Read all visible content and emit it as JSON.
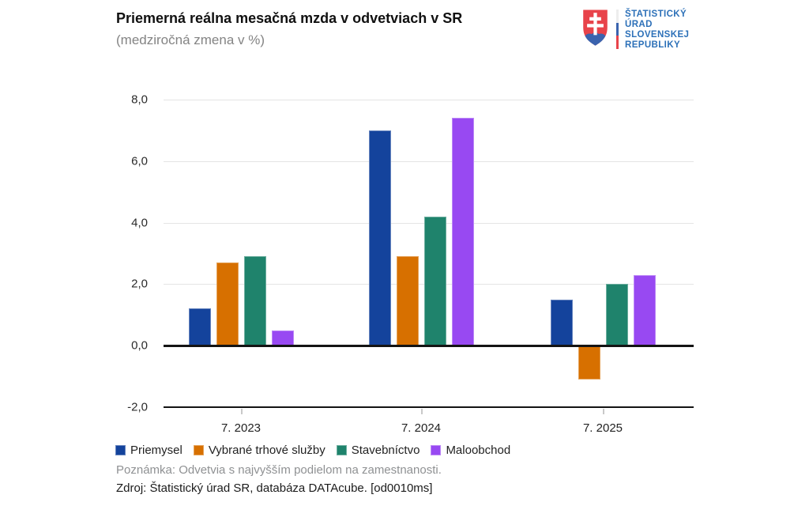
{
  "header": {
    "title": "Priemerná reálna mesačná mzda v odvetviach v SR",
    "subtitle": "(medziročná zmena v %)",
    "logo": {
      "lines": [
        "ŠTATISTICKÝ",
        "ÚRAD",
        "SLOVENSKEJ",
        "REPUBLIKY"
      ],
      "text_color": "#2C70B8",
      "shield_red": "#E8434A",
      "shield_blue": "#3A63AE",
      "divider_colors": [
        "#ededed",
        "#3A63AE",
        "#E8434A"
      ]
    }
  },
  "chart_data": {
    "type": "bar",
    "title": "Priemerná reálna mesačná mzda v odvetviach v SR",
    "subtitle": "(medziročná zmena v %)",
    "categories": [
      "7. 2023",
      "7. 2024",
      "7. 2025"
    ],
    "series": [
      {
        "name": "Priemysel",
        "color": "#14439C",
        "values": [
          1.2,
          7.0,
          1.5
        ]
      },
      {
        "name": "Vybrané trhové služby",
        "color": "#D77000",
        "values": [
          2.7,
          2.9,
          -1.1
        ]
      },
      {
        "name": "Stavebníctvo",
        "color": "#1F836C",
        "values": [
          2.9,
          4.2,
          2.0
        ]
      },
      {
        "name": "Maloobchod",
        "color": "#9849F2",
        "values": [
          0.5,
          7.4,
          2.3
        ]
      }
    ],
    "ylim": [
      -2.0,
      8.0
    ],
    "yticks": [
      {
        "value": 8,
        "label": "8,0"
      },
      {
        "value": 6,
        "label": "6,0"
      },
      {
        "value": 4,
        "label": "4,0"
      },
      {
        "value": 2,
        "label": "2,0"
      },
      {
        "value": 0,
        "label": "0,0"
      },
      {
        "value": -2,
        "label": "-2,0"
      }
    ],
    "grid": "horizontal-light",
    "zero_line": true,
    "legend_position": "bottom-left",
    "gridline_color": "#e4e4e4",
    "axis_line_color": "#141414"
  },
  "footer": {
    "note": "Poznámka: Odvetvia s najvyšším podielom na zamestnanosti.",
    "source": "Zdroj: Štatistický úrad SR, databáza DATAcube. [od0010ms]"
  }
}
